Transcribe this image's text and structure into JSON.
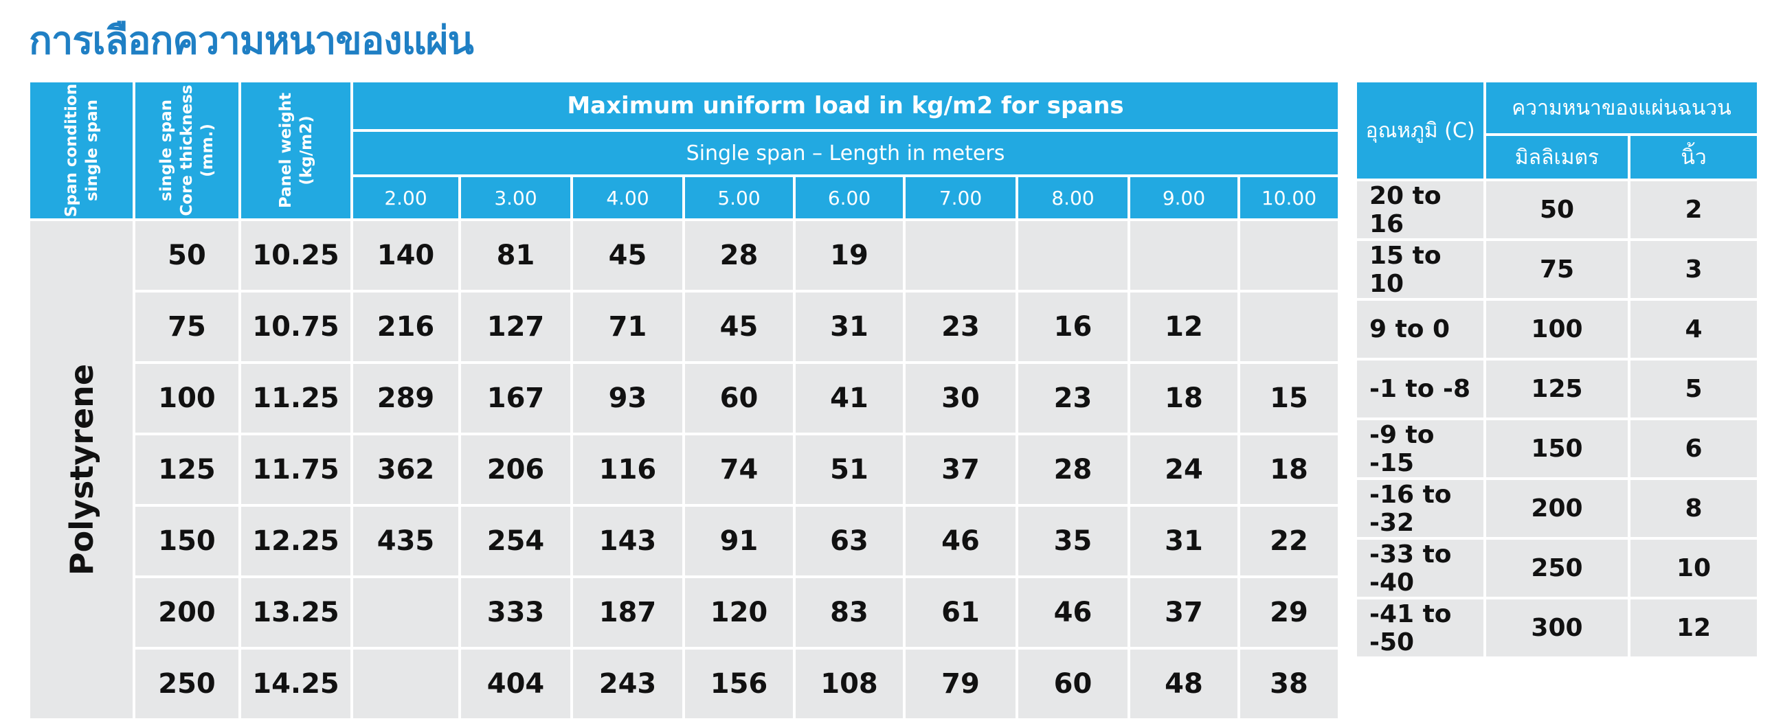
{
  "title": "การเลือกความหนาของแผ่น",
  "main_table": {
    "header_col1": [
      "Span condition",
      "single span"
    ],
    "header_col2": [
      "single span",
      "Core thickness",
      "(mm.)"
    ],
    "header_col3": [
      "Panel weight",
      "(kg/m2)"
    ],
    "header_main": "Maximum uniform load in kg/m2 for spans",
    "header_sub": "Single span – Length in meters",
    "spans": [
      "2.00",
      "3.00",
      "4.00",
      "5.00",
      "6.00",
      "7.00",
      "8.00",
      "9.00",
      "10.00"
    ],
    "material": "Polystyrene",
    "rows": [
      {
        "thickness": "50",
        "weight": "10.25",
        "loads": [
          "140",
          "81",
          "45",
          "28",
          "19",
          "",
          "",
          "",
          ""
        ]
      },
      {
        "thickness": "75",
        "weight": "10.75",
        "loads": [
          "216",
          "127",
          "71",
          "45",
          "31",
          "23",
          "16",
          "12",
          ""
        ]
      },
      {
        "thickness": "100",
        "weight": "11.25",
        "loads": [
          "289",
          "167",
          "93",
          "60",
          "41",
          "30",
          "23",
          "18",
          "15"
        ]
      },
      {
        "thickness": "125",
        "weight": "11.75",
        "loads": [
          "362",
          "206",
          "116",
          "74",
          "51",
          "37",
          "28",
          "24",
          "18"
        ]
      },
      {
        "thickness": "150",
        "weight": "12.25",
        "loads": [
          "435",
          "254",
          "143",
          "91",
          "63",
          "46",
          "35",
          "31",
          "22"
        ]
      },
      {
        "thickness": "200",
        "weight": "13.25",
        "loads": [
          "",
          "333",
          "187",
          "120",
          "83",
          "61",
          "46",
          "37",
          "29"
        ]
      },
      {
        "thickness": "250",
        "weight": "14.25",
        "loads": [
          "",
          "404",
          "243",
          "156",
          "108",
          "79",
          "60",
          "48",
          "38"
        ]
      }
    ]
  },
  "side_table": {
    "header_temp": "อุณหภูมิ (C)",
    "header_thickness": "ความหนาของแผ่นฉนวน",
    "header_mm": "มิลลิเมตร",
    "header_inch": "นิ้ว",
    "rows": [
      {
        "temp": "20 to 16",
        "mm": "50",
        "inch": "2"
      },
      {
        "temp": "15 to 10",
        "mm": "75",
        "inch": "3"
      },
      {
        "temp": "9 to 0",
        "mm": "100",
        "inch": "4"
      },
      {
        "temp": "-1 to -8",
        "mm": "125",
        "inch": "5"
      },
      {
        "temp": "-9 to -15",
        "mm": "150",
        "inch": "6"
      },
      {
        "temp": "-16 to -32",
        "mm": "200",
        "inch": "8"
      },
      {
        "temp": "-33 to -40",
        "mm": "250",
        "inch": "10"
      },
      {
        "temp": "-41 to -50",
        "mm": "300",
        "inch": "12"
      }
    ]
  },
  "colors": {
    "header_blue": "#22a9e1",
    "title_blue": "#1f7fc4",
    "cell_gray": "#e6e7e8"
  }
}
